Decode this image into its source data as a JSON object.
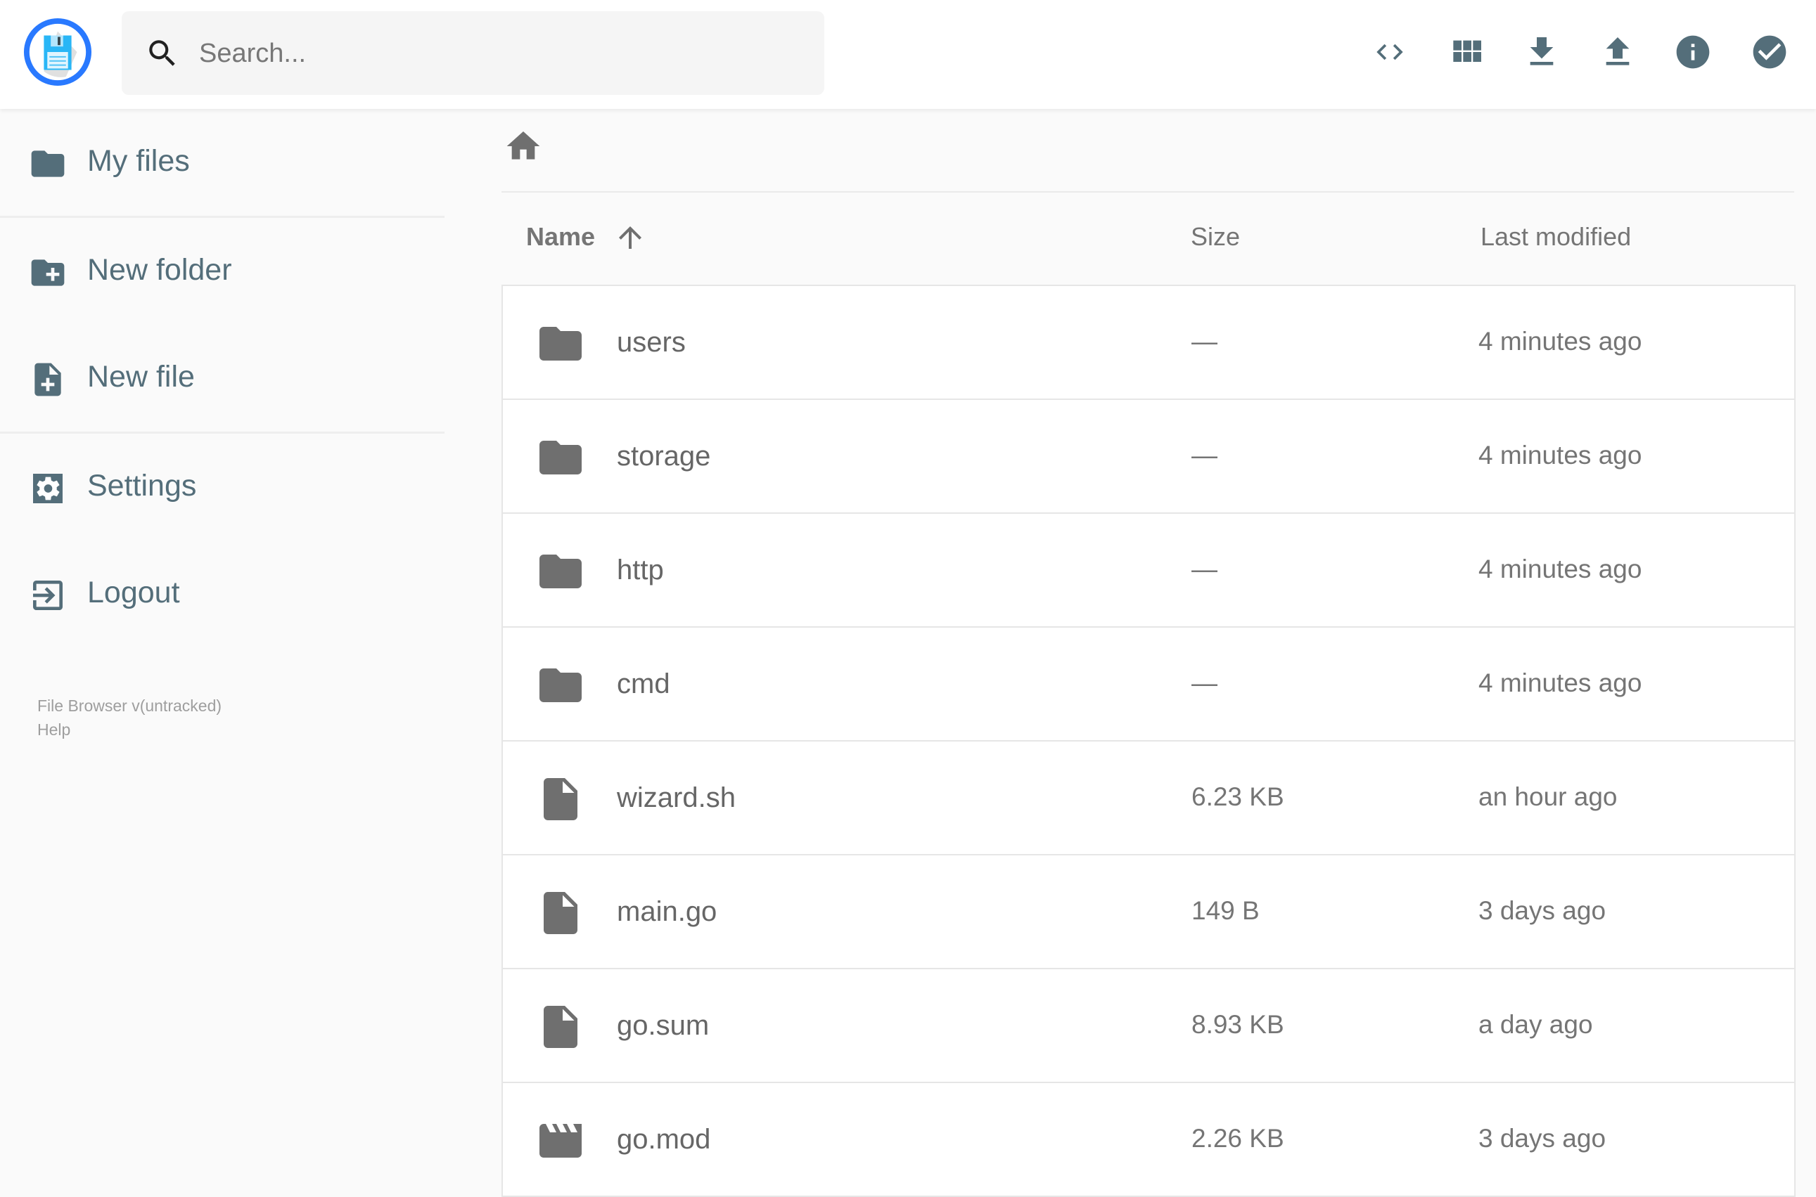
{
  "header": {
    "search_placeholder": "Search...",
    "actions": [
      {
        "icon": "code-icon",
        "label": "Toggle view source"
      },
      {
        "icon": "grid-view-icon",
        "label": "Switch view"
      },
      {
        "icon": "download-icon",
        "label": "Download"
      },
      {
        "icon": "upload-icon",
        "label": "Upload"
      },
      {
        "icon": "info-icon",
        "label": "Info"
      },
      {
        "icon": "check-circle-icon",
        "label": "Select multiple"
      }
    ],
    "icon_color": "#546e7a",
    "logo_ring_color": "#2979ff"
  },
  "sidebar": {
    "items": [
      {
        "label": "My files",
        "icon": "folder-icon"
      },
      {
        "label": "New folder",
        "icon": "create-new-folder-icon"
      },
      {
        "label": "New file",
        "icon": "note-add-icon"
      },
      {
        "label": "Settings",
        "icon": "settings-icon"
      },
      {
        "label": "Logout",
        "icon": "exit-icon"
      }
    ],
    "footer": {
      "version": "File Browser v(untracked)",
      "help": "Help"
    }
  },
  "table": {
    "columns": {
      "name": "Name",
      "size": "Size",
      "modified": "Last modified"
    },
    "sort": {
      "column": "Name",
      "direction": "ascending"
    },
    "rows": [
      {
        "name": "users",
        "size": "—",
        "modified": "4 minutes ago",
        "type": "folder"
      },
      {
        "name": "storage",
        "size": "—",
        "modified": "4 minutes ago",
        "type": "folder"
      },
      {
        "name": "http",
        "size": "—",
        "modified": "4 minutes ago",
        "type": "folder"
      },
      {
        "name": "cmd",
        "size": "—",
        "modified": "4 minutes ago",
        "type": "folder"
      },
      {
        "name": "wizard.sh",
        "size": "6.23 KB",
        "modified": "an hour ago",
        "type": "file"
      },
      {
        "name": "main.go",
        "size": "149 B",
        "modified": "3 days ago",
        "type": "file"
      },
      {
        "name": "go.sum",
        "size": "8.93 KB",
        "modified": "a day ago",
        "type": "file"
      },
      {
        "name": "go.mod",
        "size": "2.26 KB",
        "modified": "3 days ago",
        "type": "video"
      }
    ]
  }
}
